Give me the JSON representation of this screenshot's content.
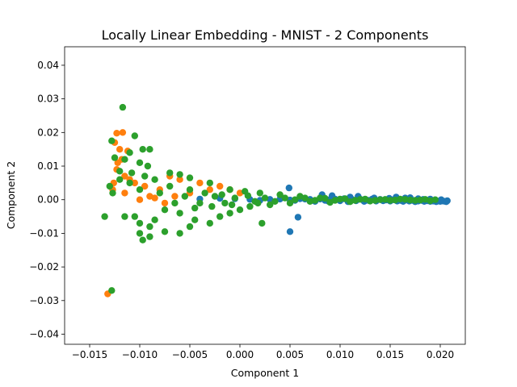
{
  "chart_data": {
    "type": "scatter",
    "title": "Locally Linear Embedding - MNIST - 2 Components",
    "xlabel": "Component 1",
    "ylabel": "Component 2",
    "xlim": [
      -0.0175,
      0.0225
    ],
    "ylim": [
      -0.043,
      0.0455
    ],
    "xticks": [
      -0.015,
      -0.01,
      -0.005,
      0.0,
      0.005,
      0.01,
      0.015,
      0.02
    ],
    "xtick_labels": [
      "−0.015",
      "−0.010",
      "−0.005",
      "0.000",
      "0.005",
      "0.010",
      "0.015",
      "0.020"
    ],
    "yticks": [
      -0.04,
      -0.03,
      -0.02,
      -0.01,
      0.0,
      0.01,
      0.02,
      0.03,
      0.04
    ],
    "ytick_labels": [
      "−0.04",
      "−0.03",
      "−0.02",
      "−0.01",
      "0.00",
      "0.01",
      "0.02",
      "0.03",
      "0.04"
    ],
    "grid": false,
    "legend": "none",
    "series": [
      {
        "color": "#1f77b4",
        "points": [
          [
            0.0205,
            -0.0005
          ],
          [
            0.0203,
            -0.0004
          ],
          [
            0.02,
            -0.0005
          ],
          [
            0.0198,
            -0.0004
          ],
          [
            0.0196,
            -0.0006
          ],
          [
            0.0193,
            -0.0004
          ],
          [
            0.019,
            -0.0005
          ],
          [
            0.0187,
            -0.0003
          ],
          [
            0.0184,
            -0.0005
          ],
          [
            0.0181,
            -0.0002
          ],
          [
            0.0178,
            -0.0004
          ],
          [
            0.0175,
            -0.0006
          ],
          [
            0.0172,
            -0.0002
          ],
          [
            0.0169,
            -0.0004
          ],
          [
            0.0166,
            -0.0001
          ],
          [
            0.0163,
            -0.0005
          ],
          [
            0.016,
            -0.0002
          ],
          [
            0.0157,
            -0.0004
          ],
          [
            0.0153,
            0.0
          ],
          [
            0.015,
            -0.0004
          ],
          [
            0.0146,
            -0.0001
          ],
          [
            0.0143,
            -0.0003
          ],
          [
            0.014,
            0.0001
          ],
          [
            0.0136,
            -0.0004
          ],
          [
            0.0132,
            0.0002
          ],
          [
            0.0128,
            -0.0002
          ],
          [
            0.0124,
            -0.0005
          ],
          [
            0.012,
            0.0002
          ],
          [
            0.0116,
            -0.0003
          ],
          [
            0.0112,
            0.0001
          ],
          [
            0.0108,
            -0.0006
          ],
          [
            0.0104,
            0.0003
          ],
          [
            0.01,
            -0.0003
          ],
          [
            0.0095,
            0.0002
          ],
          [
            0.009,
            0.0001
          ],
          [
            0.0085,
            -0.0002
          ],
          [
            0.008,
            0.0002
          ],
          [
            0.0075,
            -0.0005
          ],
          [
            0.007,
            0.0001
          ],
          [
            0.0065,
            0.0002
          ],
          [
            0.006,
            0.0003
          ],
          [
            0.0055,
            -0.0002
          ],
          [
            0.005,
            -0.0001
          ],
          [
            0.004,
            0.0002
          ],
          [
            0.003,
            0.0001
          ],
          [
            0.002,
            -0.0002
          ],
          [
            0.001,
            0.0001
          ],
          [
            -0.0005,
            0.0003
          ],
          [
            -0.002,
            0.0004
          ],
          [
            -0.004,
            0.0002
          ],
          [
            0.0082,
            0.0015
          ],
          [
            0.0058,
            -0.0052
          ],
          [
            0.005,
            -0.0095
          ],
          [
            0.0088,
            -0.0004
          ],
          [
            0.0092,
            0.0012
          ],
          [
            0.011,
            0.0008
          ],
          [
            0.0118,
            0.001
          ],
          [
            0.0134,
            0.0005
          ],
          [
            0.0149,
            0.0004
          ],
          [
            0.0165,
            0.0005
          ],
          [
            0.0178,
            0.0003
          ],
          [
            0.019,
            0.0002
          ],
          [
            0.0201,
            0.0
          ],
          [
            0.0207,
            -0.0003
          ],
          [
            0.0206,
            -0.0006
          ],
          [
            0.0049,
            0.0035
          ],
          [
            0.0156,
            0.0008
          ],
          [
            0.017,
            0.0006
          ],
          [
            0.0183,
            0.0001
          ],
          [
            0.0195,
            -0.0002
          ]
        ]
      },
      {
        "color": "#ff7f0e",
        "points": [
          [
            -0.0123,
            0.0198
          ],
          [
            -0.0117,
            0.02
          ],
          [
            -0.0125,
            0.017
          ],
          [
            -0.012,
            0.015
          ],
          [
            -0.0112,
            0.0145
          ],
          [
            -0.0118,
            0.012
          ],
          [
            -0.0123,
            0.009
          ],
          [
            -0.0115,
            0.007
          ],
          [
            -0.011,
            0.006
          ],
          [
            -0.0127,
            0.003
          ],
          [
            -0.0105,
            0.005
          ],
          [
            -0.0115,
            0.002
          ],
          [
            -0.0132,
            -0.028
          ],
          [
            -0.01,
            0.0
          ],
          [
            -0.0095,
            0.004
          ],
          [
            -0.007,
            0.007
          ],
          [
            -0.006,
            0.006
          ],
          [
            -0.004,
            0.005
          ],
          [
            -0.002,
            0.004
          ],
          [
            -0.001,
            0.003
          ],
          [
            0.0,
            0.002
          ],
          [
            -0.005,
            0.002
          ],
          [
            -0.008,
            0.003
          ],
          [
            -0.009,
            0.001
          ],
          [
            -0.003,
            0.003
          ],
          [
            -0.0085,
            0.0005
          ],
          [
            -0.0075,
            -0.001
          ],
          [
            -0.0065,
            0.001
          ],
          [
            -0.0122,
            0.011
          ],
          [
            -0.0126,
            0.005
          ]
        ]
      },
      {
        "color": "#2ca02c",
        "points": [
          [
            -0.0117,
            0.0275
          ],
          [
            -0.0128,
            0.0175
          ],
          [
            -0.0105,
            0.019
          ],
          [
            -0.0097,
            0.015
          ],
          [
            -0.009,
            0.015
          ],
          [
            -0.011,
            0.014
          ],
          [
            -0.0115,
            0.012
          ],
          [
            -0.0125,
            0.0125
          ],
          [
            -0.01,
            0.011
          ],
          [
            -0.0092,
            0.01
          ],
          [
            -0.012,
            0.0085
          ],
          [
            -0.0108,
            0.008
          ],
          [
            -0.012,
            0.006
          ],
          [
            -0.0095,
            0.007
          ],
          [
            -0.013,
            0.004
          ],
          [
            -0.0127,
            0.002
          ],
          [
            -0.011,
            0.005
          ],
          [
            -0.01,
            0.003
          ],
          [
            -0.0085,
            0.006
          ],
          [
            -0.007,
            0.008
          ],
          [
            -0.006,
            0.0075
          ],
          [
            -0.005,
            0.0065
          ],
          [
            -0.003,
            0.005
          ],
          [
            -0.001,
            0.003
          ],
          [
            0.0005,
            0.0025
          ],
          [
            0.002,
            0.002
          ],
          [
            0.004,
            0.0015
          ],
          [
            0.006,
            0.001
          ],
          [
            0.008,
            0.0005
          ],
          [
            0.01,
            0.0002
          ],
          [
            0.012,
            0.0001
          ],
          [
            0.014,
            0.0
          ],
          [
            0.016,
            0.0002
          ],
          [
            0.018,
            -0.0001
          ],
          [
            0.0195,
            0.0
          ],
          [
            -0.0135,
            -0.005
          ],
          [
            -0.0115,
            -0.005
          ],
          [
            -0.0105,
            -0.005
          ],
          [
            -0.01,
            -0.007
          ],
          [
            -0.0085,
            -0.006
          ],
          [
            -0.009,
            -0.008
          ],
          [
            -0.01,
            -0.01
          ],
          [
            -0.0097,
            -0.012
          ],
          [
            -0.009,
            -0.011
          ],
          [
            -0.0075,
            -0.0095
          ],
          [
            -0.006,
            -0.01
          ],
          [
            -0.005,
            -0.008
          ],
          [
            -0.0045,
            -0.006
          ],
          [
            -0.003,
            -0.007
          ],
          [
            -0.002,
            -0.005
          ],
          [
            -0.001,
            -0.004
          ],
          [
            0.0,
            -0.003
          ],
          [
            0.001,
            -0.002
          ],
          [
            0.0022,
            -0.007
          ],
          [
            0.003,
            -0.0015
          ],
          [
            0.005,
            -0.001
          ],
          [
            0.007,
            -0.0005
          ],
          [
            0.009,
            -0.0008
          ],
          [
            0.011,
            -0.0006
          ],
          [
            0.013,
            -0.0004
          ],
          [
            0.015,
            -0.0002
          ],
          [
            0.017,
            -0.0001
          ],
          [
            0.019,
            -0.0003
          ],
          [
            -0.0128,
            -0.027
          ],
          [
            -0.008,
            0.002
          ],
          [
            -0.0075,
            -0.003
          ],
          [
            -0.0065,
            -0.001
          ],
          [
            -0.0055,
            0.001
          ],
          [
            -0.004,
            -0.001
          ],
          [
            -0.0025,
            0.001
          ],
          [
            -0.0015,
            -0.001
          ],
          [
            -0.0005,
            0.0005
          ],
          [
            0.0015,
            -0.0005
          ],
          [
            0.0025,
            0.0005
          ],
          [
            0.0035,
            -0.0005
          ],
          [
            0.0045,
            0.0005
          ],
          [
            0.0055,
            0.0
          ],
          [
            0.0065,
            0.0005
          ],
          [
            0.0075,
            -0.0002
          ],
          [
            0.0085,
            0.0004
          ],
          [
            0.0095,
            -0.0002
          ],
          [
            0.0105,
            0.0003
          ],
          [
            0.0115,
            -0.0002
          ],
          [
            0.0125,
            0.0002
          ],
          [
            0.0135,
            -0.0002
          ],
          [
            0.0145,
            0.0001
          ],
          [
            0.0155,
            -0.0001
          ],
          [
            0.0165,
            0.0001
          ],
          [
            0.0175,
            -0.0002
          ],
          [
            0.0185,
            0.0001
          ],
          [
            -0.007,
            0.004
          ],
          [
            -0.006,
            -0.004
          ],
          [
            -0.005,
            0.003
          ],
          [
            -0.0045,
            -0.0025
          ],
          [
            -0.0035,
            0.002
          ],
          [
            -0.0028,
            -0.002
          ],
          [
            -0.0018,
            0.0015
          ],
          [
            -0.0008,
            -0.0015
          ],
          [
            0.0008,
            0.0012
          ],
          [
            0.0018,
            -0.001
          ]
        ]
      }
    ]
  }
}
